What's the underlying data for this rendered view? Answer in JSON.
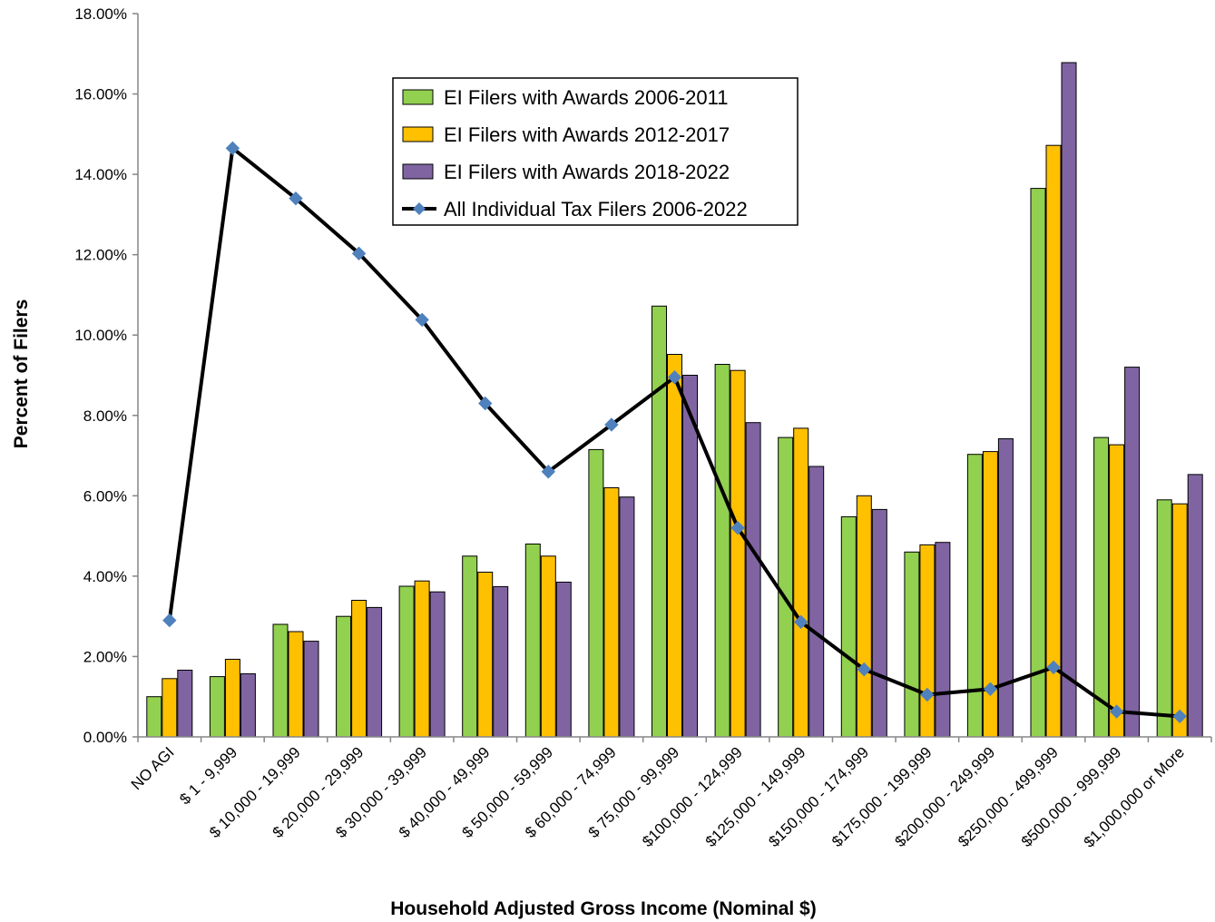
{
  "chart_data": {
    "type": "bar",
    "title": "",
    "xlabel": "Household Adjusted Gross Income (Nominal $)",
    "ylabel": "Percent of Filers",
    "ylim": [
      0,
      18
    ],
    "y_tick_step": 2,
    "y_tick_format": "percent_2dp",
    "grid": false,
    "legend_position": "top-center",
    "categories": [
      "NO AGI",
      "$ 1 - 9,999",
      "$ 10,000 - 19,999",
      "$ 20,000 - 29,999",
      "$ 30,000 - 39,999",
      "$ 40,000 - 49,999",
      "$ 50,000 - 59,999",
      "$ 60,000 - 74,999",
      "$ 75,000 - 99,999",
      "$100,000 - 124,999",
      "$125,000 - 149,999",
      "$150,000 - 174,999",
      "$175,000 - 199,999",
      "$200,000 - 249,999",
      "$250,000 - 499,999",
      "$500,000 - 999,999",
      "$1,000,000 or More"
    ],
    "bar_series": [
      {
        "name": "EI Filers with Awards 2006-2011",
        "color": "#92D050",
        "values": [
          1.0,
          1.5,
          2.8,
          3.0,
          3.75,
          4.5,
          4.8,
          7.15,
          10.72,
          9.27,
          7.45,
          5.48,
          4.6,
          7.03,
          13.65,
          7.45,
          5.9
        ]
      },
      {
        "name": "EI Filers with Awards 2012-2017",
        "color": "#FFC000",
        "values": [
          1.45,
          1.93,
          2.62,
          3.4,
          3.88,
          4.1,
          4.5,
          6.2,
          9.52,
          9.12,
          7.68,
          6.0,
          4.78,
          7.1,
          14.72,
          7.27,
          5.8
        ]
      },
      {
        "name": "EI Filers with Awards 2018-2022",
        "color": "#8064A2",
        "values": [
          1.66,
          1.57,
          2.38,
          3.22,
          3.61,
          3.74,
          3.85,
          5.97,
          9.0,
          7.82,
          6.73,
          5.66,
          4.84,
          7.42,
          16.78,
          9.2,
          6.53
        ]
      }
    ],
    "line_series": [
      {
        "name": "All Individual Tax Filers 2006-2022",
        "color": "#000000",
        "marker_color": "#4F81BD",
        "values": [
          2.9,
          14.65,
          13.4,
          12.03,
          10.38,
          8.3,
          6.6,
          7.77,
          8.95,
          5.2,
          2.86,
          1.68,
          1.05,
          1.19,
          1.73,
          0.63,
          0.51
        ]
      }
    ]
  }
}
